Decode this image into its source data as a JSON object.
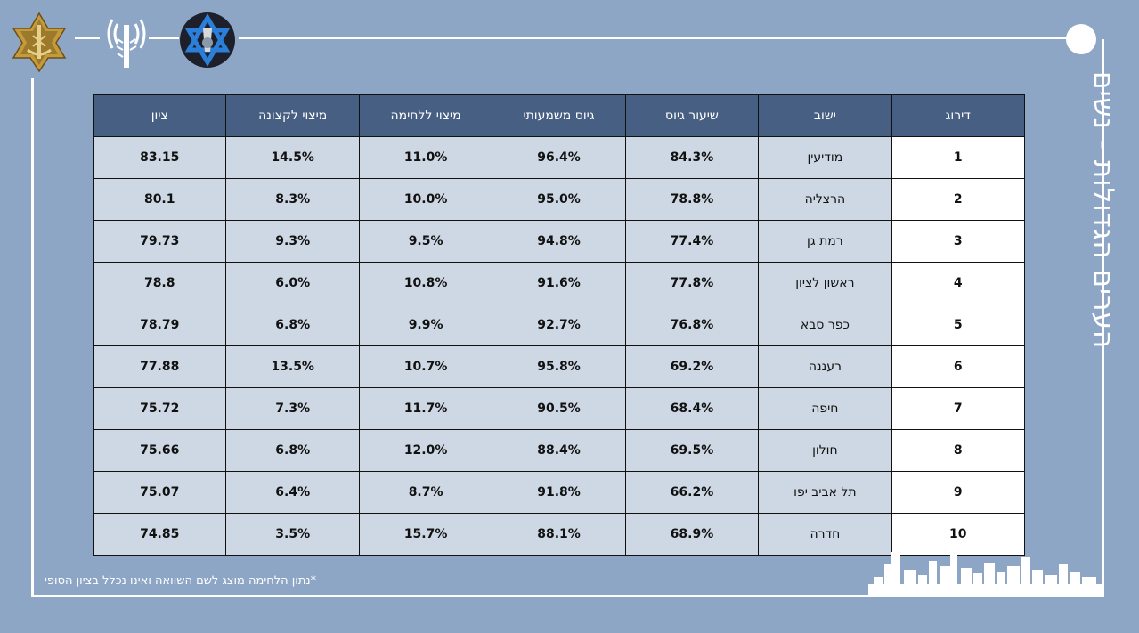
{
  "header": {
    "title": "הערים הגדולות - נשים",
    "icons": [
      "idf-emblem-icon",
      "antenna-icon",
      "star-of-david-emblem-icon"
    ]
  },
  "colors": {
    "background": "#8ea6c6",
    "header_cell": "#475f82",
    "body_cell": "#cdd8e4",
    "rank_cell": "#ffffff",
    "frame": "#ffffff"
  },
  "chart_data": {
    "type": "table",
    "columns": [
      "דירוג",
      "ישוב",
      "שיעור גיוס",
      "גיוס משמעותי",
      "מיצוי ללחימה",
      "מיצוי לקצונה",
      "ציון"
    ],
    "rows": [
      [
        "1",
        "מודיעין",
        "84.3%",
        "96.4%",
        "11.0%",
        "14.5%",
        "83.15"
      ],
      [
        "2",
        "הרצליה",
        "78.8%",
        "95.0%",
        "10.0%",
        "8.3%",
        "80.1"
      ],
      [
        "3",
        "רמת גן",
        "77.4%",
        "94.8%",
        "9.5%",
        "9.3%",
        "79.73"
      ],
      [
        "4",
        "ראשון לציון",
        "77.8%",
        "91.6%",
        "10.8%",
        "6.0%",
        "78.8"
      ],
      [
        "5",
        "כפר סבא",
        "76.8%",
        "92.7%",
        "9.9%",
        "6.8%",
        "78.79"
      ],
      [
        "6",
        "רעננה",
        "69.2%",
        "95.8%",
        "10.7%",
        "13.5%",
        "77.88"
      ],
      [
        "7",
        "חיפה",
        "68.4%",
        "90.5%",
        "11.7%",
        "7.3%",
        "75.72"
      ],
      [
        "8",
        "חולון",
        "69.5%",
        "88.4%",
        "12.0%",
        "6.8%",
        "75.66"
      ],
      [
        "9",
        "תל אביב יפו",
        "66.2%",
        "91.8%",
        "8.7%",
        "6.4%",
        "75.07"
      ],
      [
        "10",
        "חדרה",
        "68.9%",
        "88.1%",
        "15.7%",
        "3.5%",
        "74.85"
      ]
    ]
  },
  "footnote": "*נתון הלחימה מוצג לשם השוואה ואינו נכלל בציון הסופי"
}
